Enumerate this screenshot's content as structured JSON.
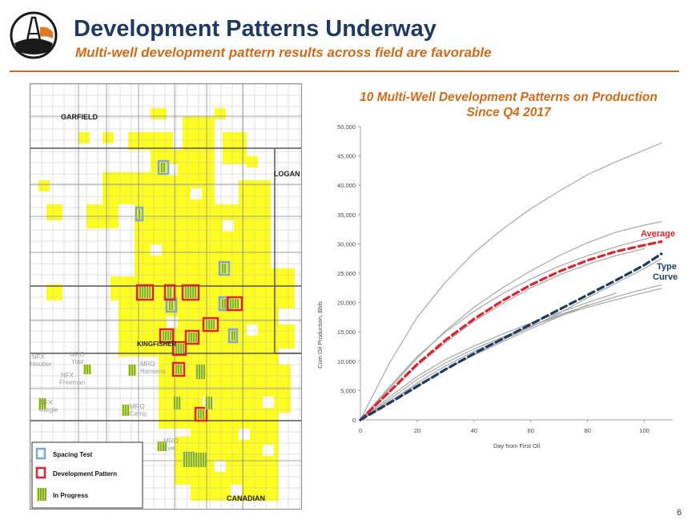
{
  "header": {
    "title": "Development Patterns Underway",
    "subtitle": "Multi-well development pattern results across field are favorable"
  },
  "map": {
    "county_labels": [
      "GARFIELD",
      "LOGAN",
      "KINGFISHER",
      "CANADIAN"
    ],
    "well_labels": [
      {
        "line1": "NFX",
        "line2": "Chlouber"
      },
      {
        "line1": "MRO",
        "line2": "Yost"
      },
      {
        "line1": "NFX",
        "line2": "Freeman"
      },
      {
        "line1": "MRO",
        "line2": "Hansens"
      },
      {
        "line1": "NFX",
        "line2": "Margie"
      },
      {
        "line1": "MRO",
        "line2": "Cerny"
      },
      {
        "line1": "MRO",
        "line2": "Eve"
      }
    ],
    "legend": [
      {
        "label": "Spacing Test",
        "color": "#7fa7c9"
      },
      {
        "label": "Development Pattern",
        "color": "#d9262e"
      },
      {
        "label": "In Progress",
        "color": "#5a8f2a"
      }
    ],
    "colors": {
      "acreage": "#ffff22",
      "grid": "#b5b5b5"
    }
  },
  "chart_data": {
    "type": "line",
    "title": "10 Multi-Well Development Patterns on Production Since Q4 2017",
    "xlabel": "Day from First Oil",
    "ylabel": "Cum Oil Production, Bbls",
    "xlim": [
      0,
      110
    ],
    "ylim": [
      0,
      50000
    ],
    "xticks": [
      0,
      20,
      40,
      60,
      80,
      100
    ],
    "yticks": [
      0,
      5000,
      10000,
      15000,
      20000,
      25000,
      30000,
      35000,
      40000,
      45000,
      50000
    ],
    "ytick_labels": [
      "0",
      "5,000",
      "10,000",
      "15,000",
      "20,000",
      "25,000",
      "30,000",
      "35,000",
      "40,000",
      "45,000",
      "50,000"
    ],
    "grid": false,
    "series": [
      {
        "name": "",
        "style": "well",
        "x": [
          0,
          10,
          20,
          30,
          40,
          50,
          60,
          70,
          80,
          90,
          100,
          106
        ],
        "y": [
          0,
          9500,
          17500,
          23500,
          28500,
          32500,
          36000,
          39000,
          41800,
          44000,
          46000,
          47200
        ]
      },
      {
        "name": "",
        "style": "well",
        "x": [
          0,
          10,
          20,
          30,
          40,
          50,
          60,
          70,
          80,
          90,
          100,
          106
        ],
        "y": [
          0,
          5200,
          10500,
          15200,
          19200,
          22500,
          25400,
          28000,
          30200,
          32000,
          33200,
          33800
        ]
      },
      {
        "name": "",
        "style": "well",
        "x": [
          0,
          10,
          20,
          30,
          40,
          50,
          60,
          70,
          80,
          90,
          100,
          106
        ],
        "y": [
          0,
          5500,
          10800,
          15000,
          18500,
          21500,
          24000,
          26200,
          28000,
          29500,
          30800,
          31500
        ]
      },
      {
        "name": "",
        "style": "well",
        "x": [
          0,
          10,
          20,
          30,
          40,
          50,
          60,
          70,
          80,
          90,
          100
        ],
        "y": [
          0,
          4500,
          9200,
          13200,
          16800,
          19800,
          22500,
          24700,
          26500,
          28000,
          29200
        ]
      },
      {
        "name": "",
        "style": "well",
        "x": [
          0,
          10,
          20,
          30,
          40,
          50,
          60,
          70,
          80,
          90,
          100,
          106
        ],
        "y": [
          0,
          3400,
          6900,
          9700,
          12100,
          14100,
          16000,
          17700,
          19200,
          20500,
          21700,
          22400
        ]
      },
      {
        "name": "",
        "style": "well",
        "x": [
          0,
          10,
          20,
          30,
          40,
          50,
          60,
          70,
          80,
          90,
          100,
          106
        ],
        "y": [
          0,
          3000,
          6300,
          9200,
          11700,
          13900,
          16000,
          17900,
          19500,
          21000,
          22300,
          23000
        ]
      },
      {
        "name": "",
        "style": "well",
        "x": [
          0,
          10,
          20,
          30,
          40,
          50,
          60,
          70,
          80,
          90,
          100,
          106
        ],
        "y": [
          0,
          2700,
          5600,
          8600,
          11200,
          13600,
          15800,
          18200,
          20800,
          23300,
          25800,
          27500
        ]
      },
      {
        "name": "",
        "style": "well",
        "x": [
          0,
          5,
          10,
          14
        ],
        "y": [
          0,
          2600,
          4900,
          6200
        ]
      },
      {
        "name": "",
        "style": "well",
        "x": [
          0,
          10,
          20,
          30,
          40,
          50,
          60,
          70,
          80,
          90
        ],
        "y": [
          0,
          3800,
          7400,
          10300,
          12600,
          14600,
          16500,
          18300,
          20000,
          21600
        ]
      },
      {
        "name": "",
        "style": "well",
        "x": [
          0,
          10,
          20,
          30,
          40,
          50,
          60,
          70,
          80
        ],
        "y": [
          0,
          3100,
          6000,
          8600,
          11000,
          13300,
          15500,
          17600,
          19600
        ]
      },
      {
        "name": "Average",
        "style": "average",
        "x": [
          0,
          10,
          20,
          30,
          40,
          50,
          60,
          70,
          80,
          90,
          100,
          106
        ],
        "y": [
          0,
          4700,
          9500,
          13600,
          17200,
          20300,
          23000,
          25300,
          27200,
          28700,
          29800,
          30400
        ]
      },
      {
        "name": "Type Curve",
        "style": "type",
        "x": [
          0,
          10,
          20,
          30,
          40,
          50,
          60,
          70,
          80,
          90,
          100,
          106
        ],
        "y": [
          0,
          2800,
          5700,
          8600,
          11300,
          13800,
          16300,
          18800,
          21300,
          23800,
          26400,
          28300
        ]
      }
    ],
    "annotations": [
      {
        "text": "Average",
        "color": "#d9262e"
      },
      {
        "text": "Type",
        "color": "#1f3a5f"
      },
      {
        "text": "Curve",
        "color": "#1f3a5f"
      }
    ],
    "colors": {
      "well": "#a6a6a6",
      "average": "#d9262e",
      "type": "#1f3a5f"
    }
  },
  "footer": {
    "page_number": "6"
  }
}
